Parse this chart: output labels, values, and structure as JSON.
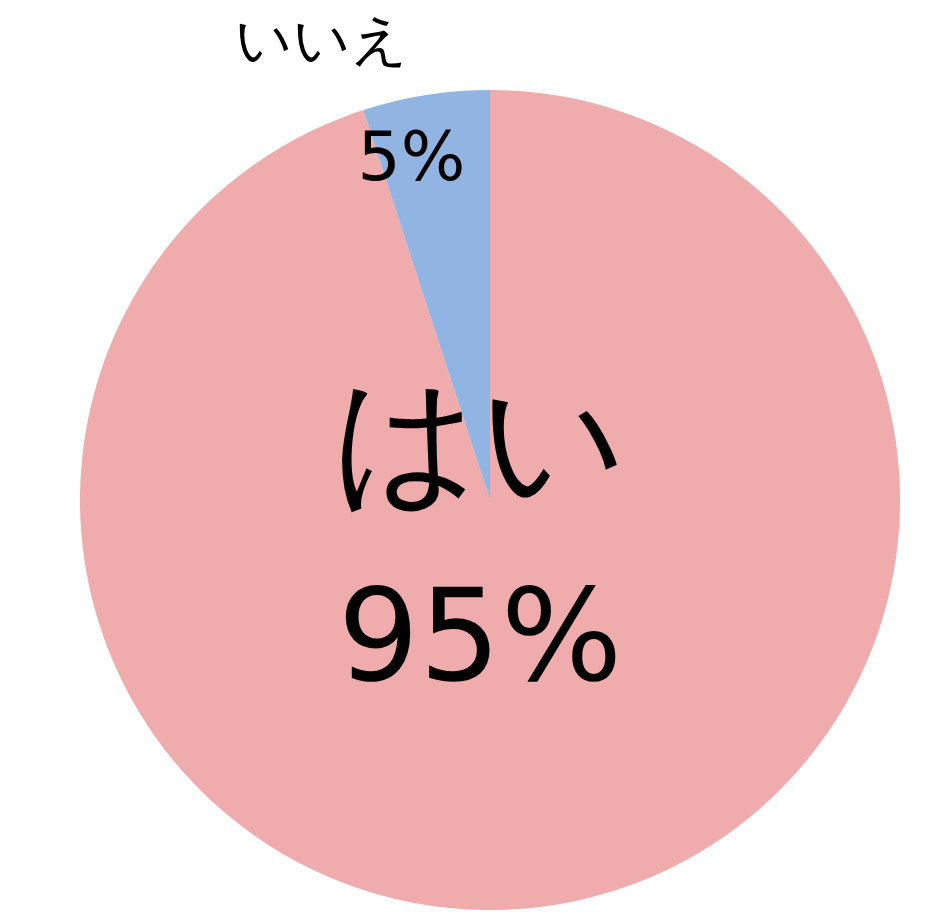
{
  "chart_data": {
    "type": "pie",
    "categories": [
      "はい",
      "いいえ"
    ],
    "values": [
      95,
      5
    ],
    "colors": [
      "#f0abac",
      "#91b4e2"
    ],
    "value_labels": [
      "95%",
      "5%"
    ],
    "legend": false
  }
}
